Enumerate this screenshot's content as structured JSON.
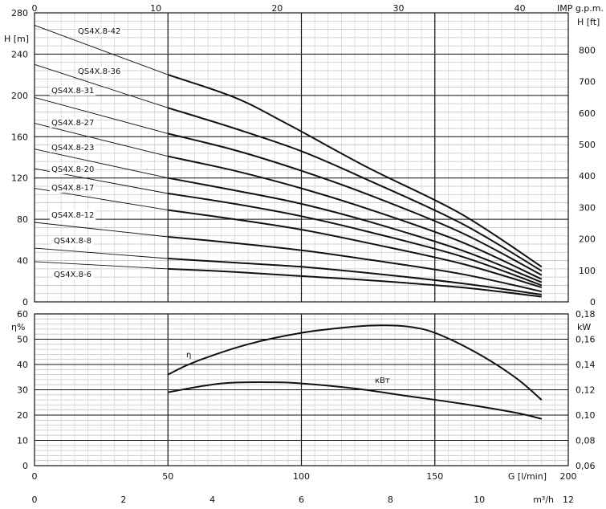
{
  "chart_data": [
    {
      "type": "line",
      "name": "head",
      "y_left_label": "H [m]",
      "y_right_label": "H [ft]",
      "top_axis_label": "IMP g.p.m.",
      "top_ticks": [
        0,
        10,
        20,
        30,
        40
      ],
      "ylim": [
        0,
        280
      ],
      "y_ticks": [
        0,
        40,
        80,
        120,
        160,
        200,
        240,
        280
      ],
      "y_right_ticks": [
        0,
        100,
        200,
        300,
        400,
        500,
        600,
        700,
        800
      ],
      "series": [
        {
          "name": "QS4X.8-42",
          "x": [
            0,
            50,
            75,
            95,
            125,
            160,
            190
          ],
          "y": [
            268,
            220,
            198,
            172,
            130,
            85,
            34
          ]
        },
        {
          "name": "QS4X.8-36",
          "x": [
            0,
            50,
            75,
            100,
            125,
            160,
            190
          ],
          "y": [
            230,
            188,
            168,
            146,
            118,
            76,
            30
          ]
        },
        {
          "name": "QS4X.8-31",
          "x": [
            0,
            50,
            75,
            100,
            125,
            160,
            190
          ],
          "y": [
            198,
            163,
            147,
            127,
            104,
            67,
            26
          ]
        },
        {
          "name": "QS4X.8-27",
          "x": [
            0,
            50,
            75,
            100,
            125,
            160,
            190
          ],
          "y": [
            173,
            141,
            127,
            110,
            90,
            58,
            22
          ]
        },
        {
          "name": "QS4X.8-23",
          "x": [
            0,
            50,
            75,
            100,
            125,
            160,
            190
          ],
          "y": [
            148,
            120,
            108,
            95,
            78,
            50,
            19
          ]
        },
        {
          "name": "QS4X.8-20",
          "x": [
            0,
            50,
            75,
            100,
            125,
            160,
            190
          ],
          "y": [
            129,
            105,
            95,
            83,
            68,
            44,
            16
          ]
        },
        {
          "name": "QS4X.8-17",
          "x": [
            0,
            50,
            75,
            100,
            125,
            160,
            190
          ],
          "y": [
            110,
            89,
            80,
            70,
            57,
            37,
            14
          ]
        },
        {
          "name": "QS4X.8-12",
          "x": [
            0,
            50,
            75,
            100,
            125,
            160,
            190
          ],
          "y": [
            77,
            63,
            57,
            50,
            41,
            27,
            10
          ]
        },
        {
          "name": "QS4X.8-8",
          "x": [
            0,
            50,
            75,
            100,
            125,
            160,
            190
          ],
          "y": [
            52,
            42,
            38,
            34,
            28,
            18,
            7
          ]
        },
        {
          "name": "QS4X.8-6",
          "x": [
            0,
            50,
            75,
            100,
            125,
            160,
            190
          ],
          "y": [
            39,
            32,
            29,
            25,
            21,
            14,
            5
          ]
        }
      ]
    },
    {
      "type": "line",
      "name": "efficiency-power",
      "y_left_label": "η%",
      "y_right_label": "kW",
      "ylim": [
        0,
        60
      ],
      "y_ticks": [
        0,
        10,
        20,
        30,
        40,
        50,
        60
      ],
      "y_right_ticks": [
        "0,06",
        "0,08",
        "0,10",
        "0,12",
        "0,14",
        "0,16",
        "0,18"
      ],
      "x_label_lmin": "G [l/min]",
      "x_ticks_lmin": [
        0,
        50,
        100,
        150,
        200
      ],
      "x_label_m3h": "m³/h",
      "x_ticks_m3h": [
        0,
        2,
        4,
        6,
        8,
        10,
        12
      ],
      "series": [
        {
          "name": "η",
          "x": [
            50,
            60,
            80,
            100,
            120,
            130,
            140,
            150,
            165,
            180,
            190
          ],
          "y": [
            36,
            41,
            48,
            52.5,
            55,
            55.5,
            55,
            52.5,
            45,
            35,
            26
          ]
        },
        {
          "name": "кВт",
          "x": [
            50,
            70,
            90,
            100,
            120,
            140,
            160,
            180,
            190
          ],
          "y": [
            29,
            32.5,
            33,
            32.5,
            30.5,
            27.5,
            24.5,
            21,
            18.5
          ]
        }
      ]
    }
  ]
}
